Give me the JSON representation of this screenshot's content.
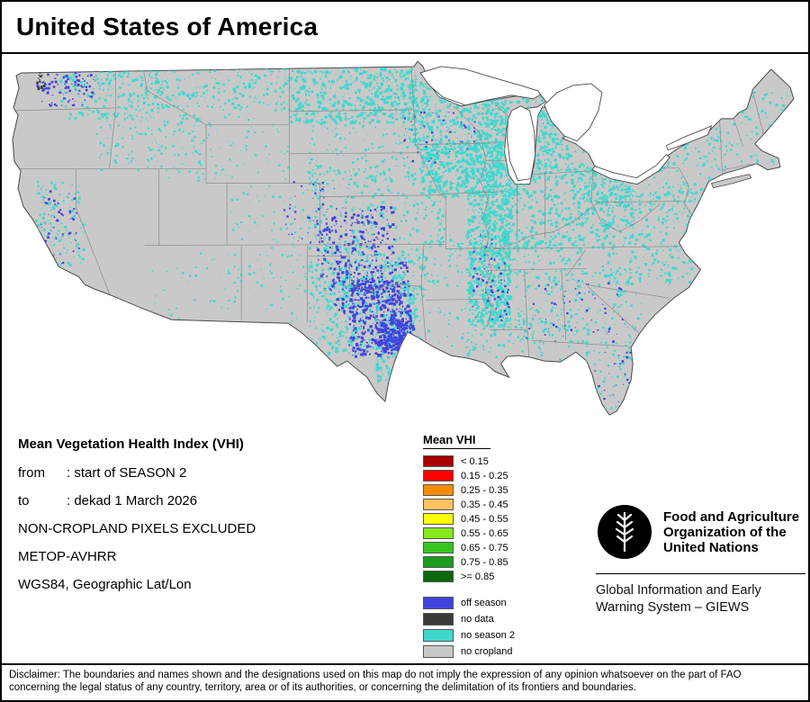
{
  "title": "United States of America",
  "info": {
    "heading": "Mean Vegetation Health Index (VHI)",
    "rows": [
      {
        "label": "from",
        "value": ": start of SEASON 2"
      },
      {
        "label": "to",
        "value": ": dekad 1 March 2026"
      }
    ],
    "lines": [
      "NON-CROPLAND PIXELS EXCLUDED",
      "METOP-AVHRR",
      "WGS84, Geographic Lat/Lon"
    ]
  },
  "legend": {
    "title": "Mean VHI",
    "vhi_classes": [
      {
        "color": "#A80000",
        "label": "< 0.15"
      },
      {
        "color": "#FF0000",
        "label": "0.15 - 0.25"
      },
      {
        "color": "#FF8C00",
        "label": "0.25 - 0.35"
      },
      {
        "color": "#FFC060",
        "label": "0.35 - 0.45"
      },
      {
        "color": "#FFFF00",
        "label": "0.45 - 0.55"
      },
      {
        "color": "#86E81E",
        "label": "0.55 - 0.65"
      },
      {
        "color": "#35C51E",
        "label": "0.65 - 0.75"
      },
      {
        "color": "#1D9B1D",
        "label": "0.75 - 0.85"
      },
      {
        "color": "#0C660C",
        "label": ">= 0.85"
      }
    ],
    "status_classes": [
      {
        "color": "#4343E0",
        "label": "off season"
      },
      {
        "color": "#3A3A3A",
        "label": "no data"
      },
      {
        "color": "#3FD8CE",
        "label": "no season 2"
      },
      {
        "color": "#C9C9C9",
        "label": "no cropland"
      }
    ]
  },
  "map": {
    "region": "United States of America",
    "colors": {
      "land": "#C9C9C9",
      "coastline": "#4A4A4A",
      "state_border": "#8C8C8C",
      "water": "#FFFFFF"
    }
  },
  "fao": {
    "name_lines": [
      "Food and Agriculture",
      "Organization of the",
      "United Nations"
    ],
    "giews_lines": [
      "Global Information and Early",
      "Warning System – GIEWS"
    ]
  },
  "disclaimer": [
    "Disclaimer: The boundaries and names shown and the designations used on this map do not imply the expression of any opinion whatsoever on the part of FAO",
    "concerning the legal status of any country, territory, area or of its authorities, or concerning the delimitation of its frontiers and boundaries."
  ]
}
